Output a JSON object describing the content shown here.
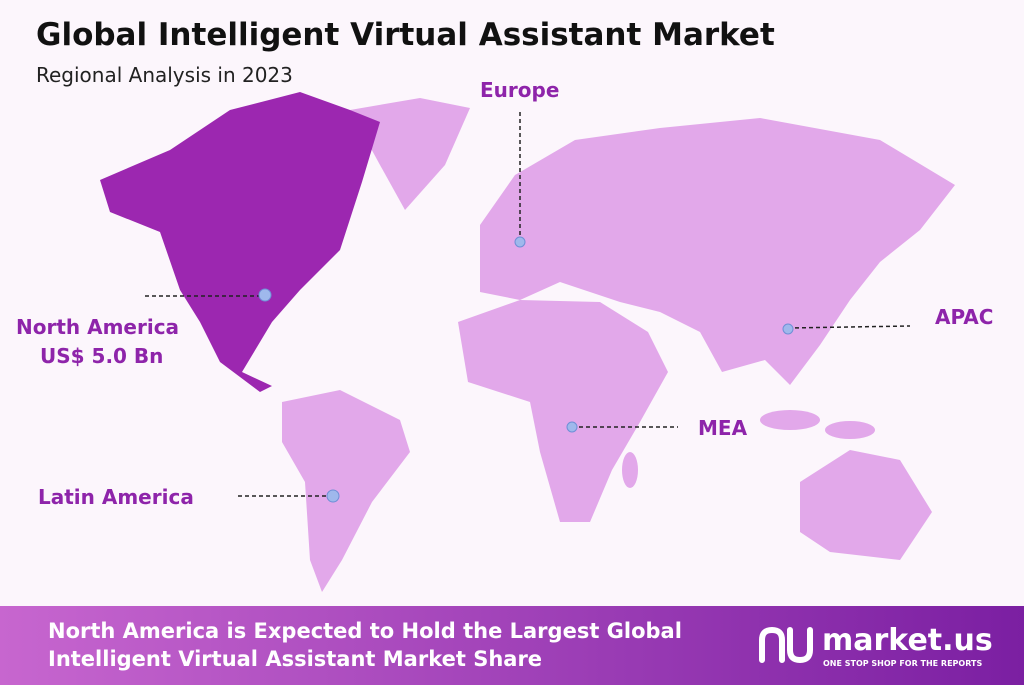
{
  "header": {
    "title": "Global Intelligent Virtual Assistant Market",
    "subtitle": "Regional Analysis in 2023"
  },
  "regions": [
    {
      "name": "North America",
      "value_label": "US$ 5.0 Bn"
    },
    {
      "name": "Europe"
    },
    {
      "name": "APAC"
    },
    {
      "name": "MEA"
    },
    {
      "name": "Latin America"
    }
  ],
  "footer": {
    "lines": [
      "North America is Expected to Hold the Largest Global",
      "Intelligent Virtual Assistant Market Share"
    ],
    "brand": "market.us",
    "tagline": "ONE STOP SHOP FOR THE REPORTS"
  }
}
